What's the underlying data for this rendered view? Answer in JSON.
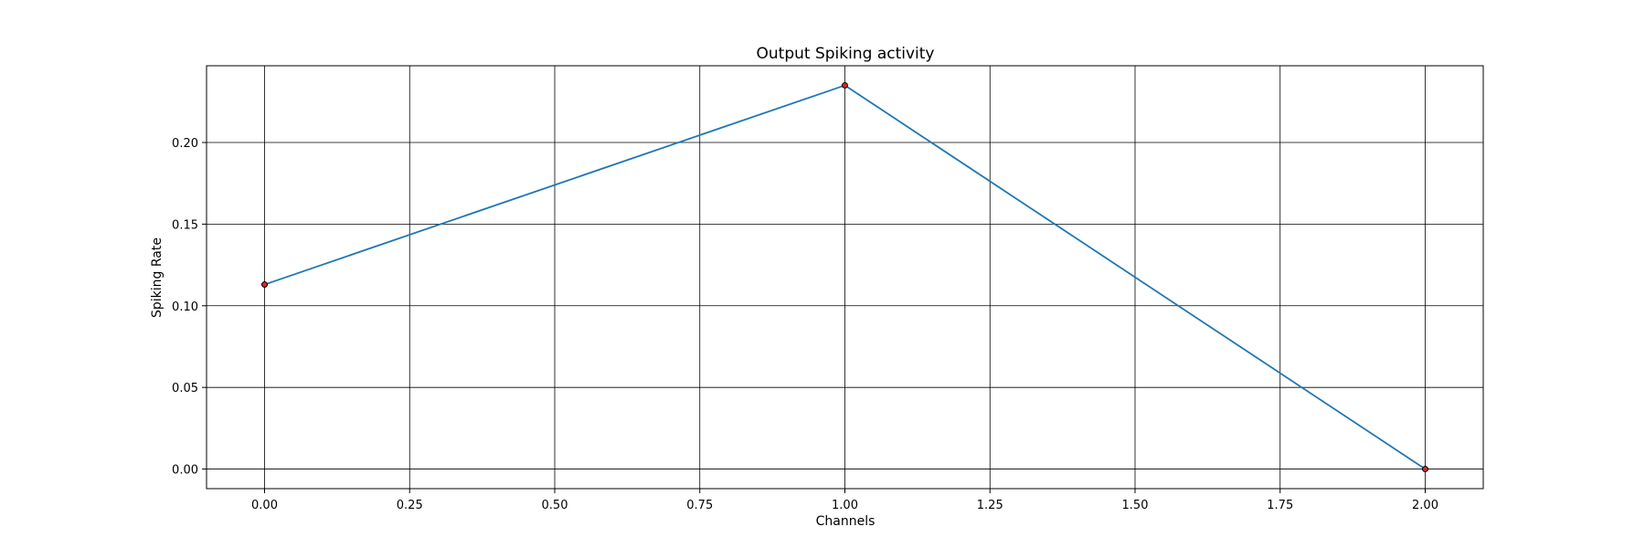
{
  "chart_data": {
    "type": "line",
    "title": "Output Spiking activity",
    "xlabel": "Channels",
    "ylabel": "Spiking Rate",
    "x": [
      0,
      1,
      2
    ],
    "series": [
      {
        "values": [
          0.113,
          0.235,
          0.0
        ]
      }
    ],
    "xlim": [
      -0.1,
      2.1
    ],
    "ylim": [
      -0.012,
      0.247
    ],
    "xticks": [
      0.0,
      0.25,
      0.5,
      0.75,
      1.0,
      1.25,
      1.5,
      1.75,
      2.0
    ],
    "xtick_labels": [
      "0.00",
      "0.25",
      "0.50",
      "0.75",
      "1.00",
      "1.25",
      "1.50",
      "1.75",
      "2.00"
    ],
    "yticks": [
      0.0,
      0.05,
      0.1,
      0.15,
      0.2
    ],
    "ytick_labels": [
      "0.00",
      "0.05",
      "0.10",
      "0.15",
      "0.20"
    ],
    "grid": true,
    "legend": "none",
    "colors": {
      "line": "#1f77b4",
      "marker_fill": "#d62728",
      "marker_edge": "#000000",
      "grid": "#000000"
    }
  }
}
